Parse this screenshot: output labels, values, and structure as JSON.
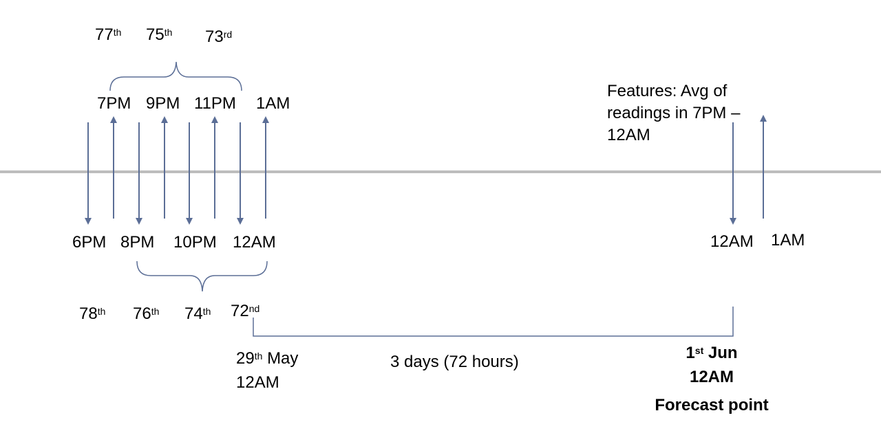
{
  "diagram": {
    "colors": {
      "arrow": "#5b6e96",
      "timeline": "#bdbdbd",
      "bracket": "#5b6e96"
    },
    "top_ordinals": [
      {
        "num": "77",
        "suf": "th"
      },
      {
        "num": "75",
        "suf": "th"
      },
      {
        "num": "73",
        "suf": "rd"
      }
    ],
    "top_times": [
      "7PM",
      "9PM",
      "11PM",
      "1AM"
    ],
    "bottom_times": [
      "6PM",
      "8PM",
      "10PM",
      "12AM"
    ],
    "bottom_ordinals": [
      {
        "num": "78",
        "suf": "th"
      },
      {
        "num": "76",
        "suf": "th"
      },
      {
        "num": "74",
        "suf": "th"
      },
      {
        "num": "72",
        "suf": "nd"
      }
    ],
    "features_text": "Features: Avg of readings in 7PM – 12AM",
    "forecast_times": [
      "12AM",
      "1AM"
    ],
    "start_label": {
      "day": "29",
      "suf": "th",
      "month": "May",
      "time": "12AM"
    },
    "span_label": "3 days (72 hours)",
    "end_label": {
      "day": "1",
      "suf": "st",
      "month": "Jun",
      "time": "12AM"
    },
    "forecast_point": "Forecast point"
  }
}
